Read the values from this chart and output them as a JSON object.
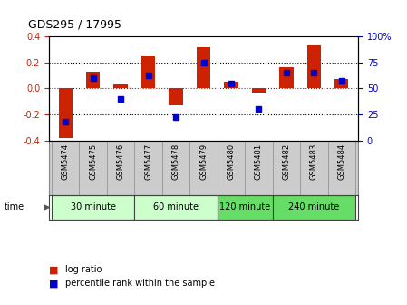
{
  "title": "GDS295 / 17995",
  "samples": [
    "GSM5474",
    "GSM5475",
    "GSM5476",
    "GSM5477",
    "GSM5478",
    "GSM5479",
    "GSM5480",
    "GSM5481",
    "GSM5482",
    "GSM5483",
    "GSM5484"
  ],
  "log_ratio": [
    -0.38,
    0.13,
    0.03,
    0.245,
    -0.13,
    0.32,
    0.055,
    -0.03,
    0.165,
    0.33,
    0.07
  ],
  "percentile": [
    18,
    60,
    40,
    63,
    22,
    75,
    55,
    30,
    65,
    65,
    57
  ],
  "groups": [
    {
      "label": "30 minute",
      "start": 0,
      "end": 3,
      "color": "#ccffcc"
    },
    {
      "label": "60 minute",
      "start": 3,
      "end": 6,
      "color": "#ccffcc"
    },
    {
      "label": "120 minute",
      "start": 6,
      "end": 8,
      "color": "#66dd66"
    },
    {
      "label": "240 minute",
      "start": 8,
      "end": 11,
      "color": "#66dd66"
    }
  ],
  "ylim": [
    -0.4,
    0.4
  ],
  "yticks_left": [
    -0.4,
    -0.2,
    0.0,
    0.2,
    0.4
  ],
  "yticks_right": [
    0,
    25,
    50,
    75,
    100
  ],
  "bar_color": "#cc2200",
  "percentile_color": "#0000cc",
  "percentile_marker_size": 5,
  "bar_width": 0.5,
  "zero_line_color": "#cc0000",
  "background_color": "#ffffff",
  "figsize": [
    4.49,
    3.36
  ],
  "dpi": 100,
  "label_row_color": "#cccccc",
  "group_border": "#888888"
}
